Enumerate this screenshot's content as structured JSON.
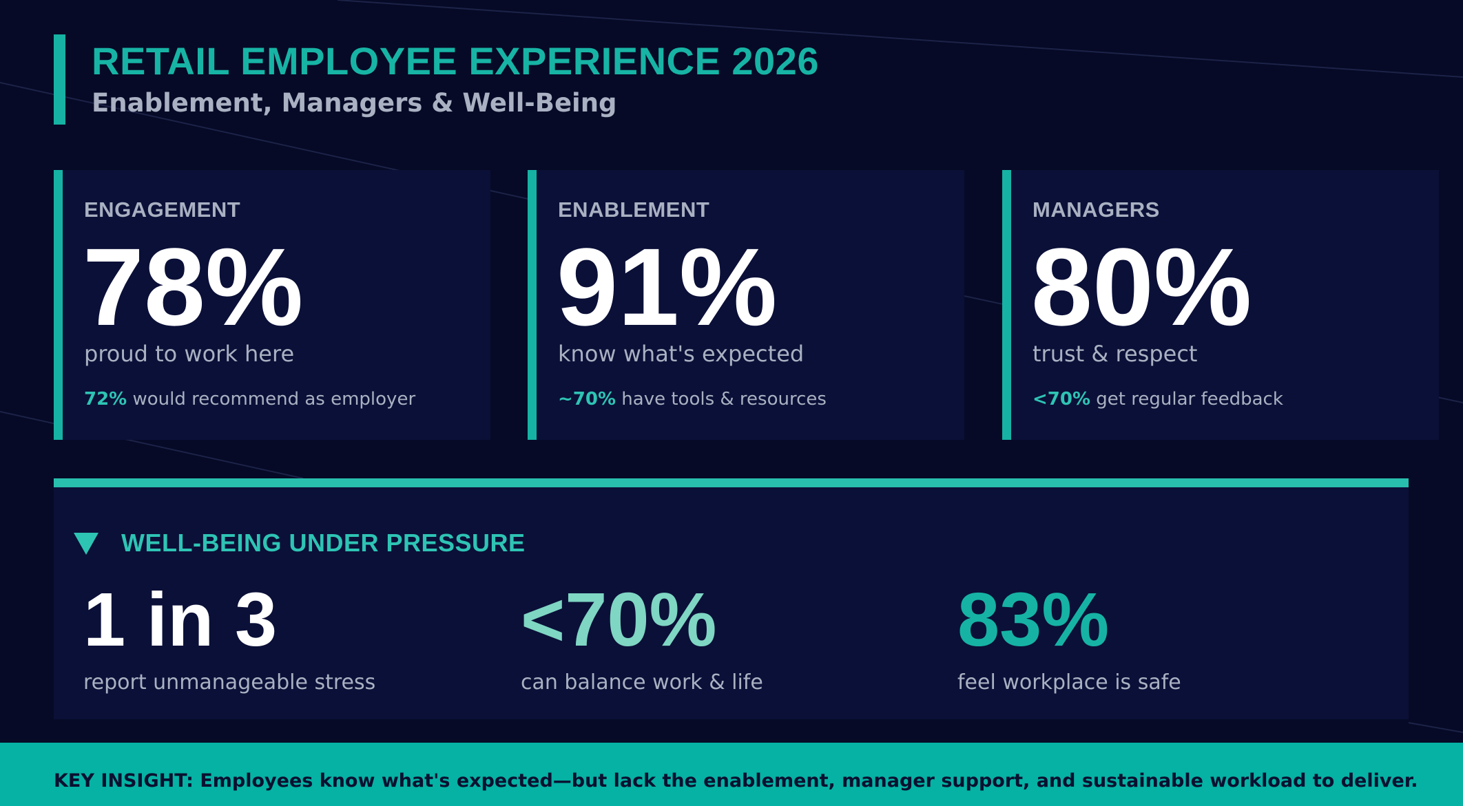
{
  "header": {
    "title": "RETAIL EMPLOYEE EXPERIENCE 2026",
    "subtitle": "Enablement, Managers & Well-Being"
  },
  "cards": [
    {
      "label": "ENGAGEMENT",
      "value": "78%",
      "description": "proud to work here",
      "footnote_highlight": "72%",
      "footnote_text": " would recommend as employer"
    },
    {
      "label": "ENABLEMENT",
      "value": "91%",
      "description": "know what's expected",
      "footnote_highlight": "~70%",
      "footnote_text": " have tools & resources"
    },
    {
      "label": "MANAGERS",
      "value": "80%",
      "description": "trust & respect",
      "footnote_highlight": "<70%",
      "footnote_text": " get regular feedback"
    }
  ],
  "wellbeing": {
    "icon": "triangle-down-icon",
    "title": "WELL-BEING UNDER PRESSURE",
    "stats": [
      {
        "value": "1 in 3",
        "description": "report unmanageable stress",
        "color": "#ffffff"
      },
      {
        "value": "<70%",
        "description": "can balance work & life",
        "color": "#7fd6c3"
      },
      {
        "value": "83%",
        "description": "feel workplace is safe",
        "color": "#16b3a4"
      }
    ]
  },
  "footer": {
    "insight": "KEY INSIGHT: Employees know what's expected—but lack the enablement, manager support, and sustainable workload to deliver."
  },
  "colors": {
    "background": "#060a26",
    "card": "#0b1038",
    "accent": "#16b3a4",
    "footer": "#05b2a4"
  }
}
